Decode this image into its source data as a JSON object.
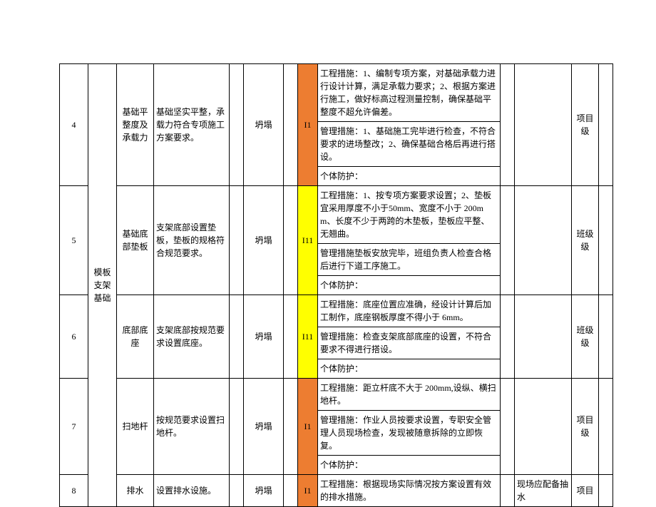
{
  "colors": {
    "orange": "#ed7d31",
    "yellow": "#ffff00",
    "border": "#000000",
    "bg": "#ffffff",
    "text": "#000000"
  },
  "category": "模板支架基础",
  "rows": [
    {
      "no": "4",
      "sub": "基础平整度及承载力",
      "req": "基础坚实平整，承载力符合专项施工方案要求。",
      "hazard": "坍塌",
      "code": "I1",
      "code_style": "orange",
      "measures": [
        "工程措施：1、编制专项方案，对基础承载力进行设计计算，满足承载力要求；2、根据方案进行施工，做好标高过程测量控制，确保基础平整度不超允许偏差。",
        "管理措施：1、基础施工完毕进行检查，不符合要求的进场整改；2、确保基础合格后再进行搭设。",
        "个体防护："
      ],
      "note": "",
      "level": "项目级"
    },
    {
      "no": "5",
      "sub": "基础底部垫板",
      "req": "支架底部设置垫板，垫板的规格符合规范要求。",
      "hazard": "坍塌",
      "code": "I11",
      "code_style": "yellow",
      "measures": [
        "工程措施：1、按专项方案要求设置；2、垫板宜采用厚度不小于50mm、宽度不小于 200mm、长度不少于两跨的木垫板，垫板应平整、无翘曲。",
        "管理措施垫板安放完毕，班组负责人检查合格后进行下道工序施工。",
        "个体防护："
      ],
      "note": "",
      "level": "班级级"
    },
    {
      "no": "6",
      "sub": "底部底座",
      "req": "支架底部按规范要求设置底座。",
      "hazard": "坍塌",
      "code": "I11",
      "code_style": "yellow",
      "measures": [
        "工程措施：底座位置应准确，经设计计算后加工制作，底座钢板厚度不得小于 6mm。",
        "管理措施：检查支架底部底座的设置，不符合要求不得进行搭设。",
        "个体防护："
      ],
      "note": "",
      "level": "班级级"
    },
    {
      "no": "7",
      "sub": "扫地杆",
      "req": "按规范要求设置扫地杆。",
      "hazard": "坍塌",
      "code": "I1",
      "code_style": "orange",
      "measures": [
        "工程措施：距立杆底不大于 200mm,设纵、横扫地杆。",
        "管理措施：作业人员按要求设置，专职安全管理人员现场检查，发现被随意拆除的立即恢复。",
        "个体防护："
      ],
      "note": "",
      "level": "项目级"
    },
    {
      "no": "8",
      "sub": "排水",
      "req": "设置排水设施。",
      "hazard": "坍塌",
      "code": "I1",
      "code_style": "orange",
      "measures": [
        "工程措施：根据现场实际情况按方案设置有效的排水措施。"
      ],
      "note": "现场应配备抽水",
      "level": "项目"
    }
  ]
}
